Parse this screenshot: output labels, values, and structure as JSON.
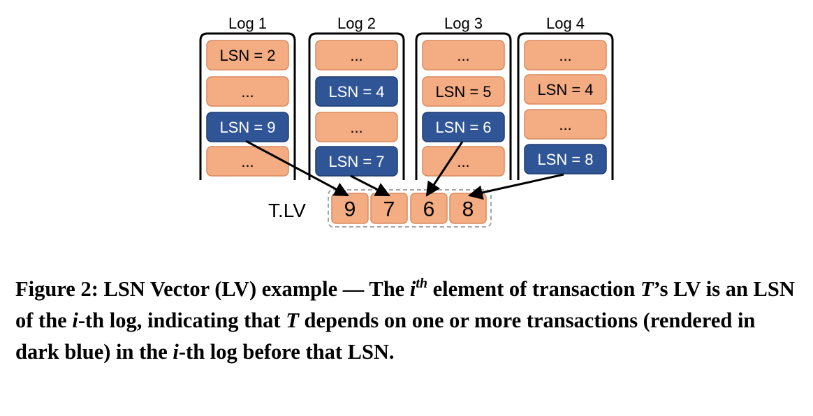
{
  "diagram": {
    "logs": [
      {
        "title": "Log 1",
        "entries": [
          {
            "label": "LSN = 2",
            "highlight": false
          },
          {
            "label": "...",
            "highlight": false
          },
          {
            "label": "LSN = 9",
            "highlight": true
          },
          {
            "label": "...",
            "highlight": false
          }
        ]
      },
      {
        "title": "Log 2",
        "entries": [
          {
            "label": "...",
            "highlight": false
          },
          {
            "label": "LSN = 4",
            "highlight": true
          },
          {
            "label": "...",
            "highlight": false
          },
          {
            "label": "LSN = 7",
            "highlight": true
          }
        ]
      },
      {
        "title": "Log 3",
        "entries": [
          {
            "label": "...",
            "highlight": false
          },
          {
            "label": "LSN = 5",
            "highlight": false
          },
          {
            "label": "LSN = 6",
            "highlight": true
          },
          {
            "label": "...",
            "highlight": false
          }
        ]
      },
      {
        "title": "Log 4",
        "entries": [
          {
            "label": "...",
            "highlight": false
          },
          {
            "label": "LSN = 4",
            "highlight": false
          },
          {
            "label": "...",
            "highlight": false
          },
          {
            "label": "LSN = 8",
            "highlight": true
          }
        ]
      }
    ],
    "vector": {
      "label": "T.LV",
      "values": [
        "9",
        "7",
        "6",
        "8"
      ]
    },
    "colors": {
      "entry_fill": "#f4ac82",
      "entry_stroke": "#d98a5d",
      "highlight_fill": "#2f5597",
      "highlight_stroke": "#1f3d70",
      "highlight_text": "#ffffff",
      "entry_text": "#000000",
      "dashed_border": "#a6a6a6"
    }
  },
  "caption": {
    "prefix": "Figure 2: LSN Vector (LV) example — The ",
    "math_i": "i",
    "sup": "th",
    "p1": " element of transaction ",
    "math_T": "T",
    "p2": "’s LV is an LSN of the ",
    "math_i2": "i",
    "p3": "-th log, indicating that ",
    "math_T2": "T",
    "p4": " depends on one or more transactions (rendered in dark blue) in the ",
    "math_i3": "i",
    "p5": "-th log before that LSN."
  }
}
